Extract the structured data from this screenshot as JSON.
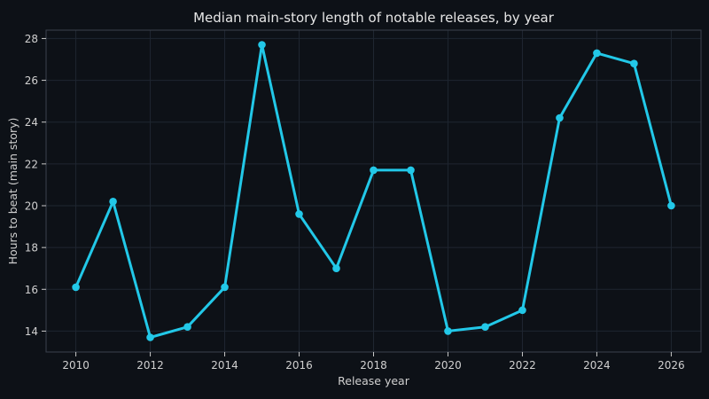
{
  "chart_data": {
    "type": "line",
    "title": "Median main-story length of notable releases, by year",
    "xlabel": "Release year",
    "ylabel": "Hours to beat (main story)",
    "xlim": [
      2009.2,
      2026.8
    ],
    "ylim": [
      13.0,
      28.4
    ],
    "xticks": [
      2010,
      2012,
      2014,
      2016,
      2018,
      2020,
      2022,
      2024,
      2026
    ],
    "yticks": [
      14,
      16,
      18,
      20,
      22,
      24,
      26,
      28
    ],
    "grid": true,
    "series": [
      {
        "color": "#22c8e8",
        "x": [
          2010,
          2011,
          2012,
          2013,
          2014,
          2015,
          2016,
          2017,
          2018,
          2019,
          2020,
          2021,
          2022,
          2023,
          2024,
          2025,
          2026
        ],
        "y": [
          16.1,
          20.2,
          13.7,
          14.2,
          16.1,
          27.7,
          19.6,
          17.0,
          21.7,
          21.7,
          14.0,
          14.2,
          15.0,
          24.2,
          27.3,
          26.8,
          20.0
        ]
      }
    ],
    "colors": {
      "background": "#0d1117",
      "line": "#22c8e8"
    }
  }
}
